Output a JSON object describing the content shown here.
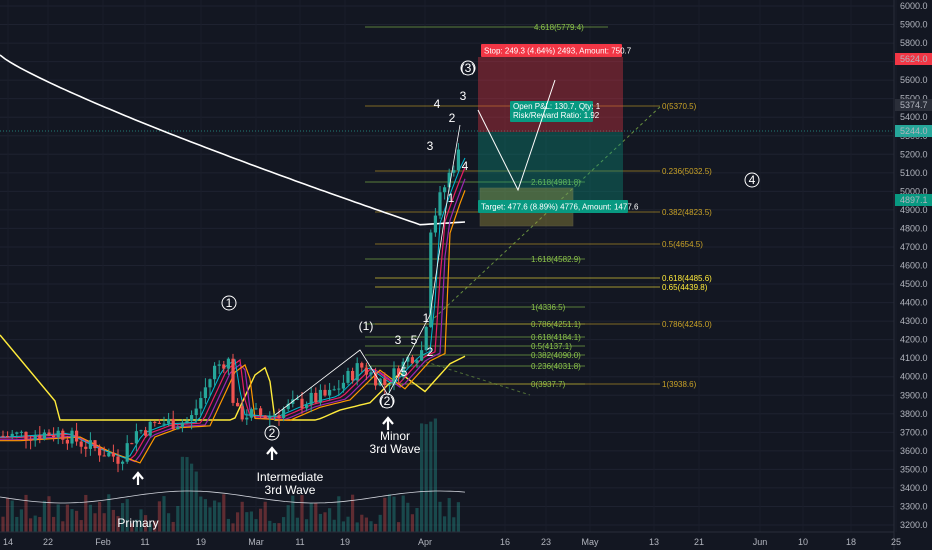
{
  "chart_data": {
    "type": "candlestick",
    "symbol_axis": "price",
    "ylim": [
      3200,
      6000
    ],
    "y_ticks": [
      "3200.0",
      "3300.0",
      "3400.0",
      "3500.0",
      "3600.0",
      "3700.0",
      "3800.0",
      "3900.0",
      "4000.0",
      "4100.0",
      "4200.0",
      "4300.0",
      "4400.0",
      "4500.0",
      "4600.0",
      "4700.0",
      "4800.0",
      "4900.0",
      "5000.0",
      "5100.0",
      "5200.0",
      "5300.0",
      "5400.0",
      "5500.0",
      "5600.0",
      "5700.0",
      "5800.0",
      "5900.0",
      "6000.0"
    ],
    "x_ticks": [
      "14",
      "22",
      "Feb",
      "11",
      "19",
      "Mar",
      "11",
      "19",
      "Apr",
      "16",
      "23",
      "May",
      "13",
      "21",
      "Jun",
      "10",
      "18",
      "25"
    ],
    "price_badges": [
      {
        "label": "5624.0",
        "color": "#f23645"
      },
      {
        "label": "5374.7",
        "color": "#2a2e39"
      },
      {
        "label": "5244.0",
        "color": "#26a69a"
      },
      {
        "label": "4897.1",
        "color": "#089981"
      }
    ],
    "fib_labels": [
      {
        "label": "4.618(5779.4)",
        "color": "#8bc34a"
      },
      {
        "label": "0(5370.5)",
        "color": "#c9a227"
      },
      {
        "label": "0.236(5032.5)",
        "color": "#c9a227"
      },
      {
        "label": "2.618(4981.8)",
        "color": "#8bc34a"
      },
      {
        "label": "0.382(4823.5)",
        "color": "#c9a227"
      },
      {
        "label": "0.5(4654.5)",
        "color": "#c9a227"
      },
      {
        "label": "1.618(4582.9)",
        "color": "#8bc34a"
      },
      {
        "label": "0.618(4485.6)",
        "color": "#ffeb3b"
      },
      {
        "label": "0.65(4439.8)",
        "color": "#ffeb3b"
      },
      {
        "label": "1(4336.5)",
        "color": "#8bc34a"
      },
      {
        "label": "0.786(4251.1)",
        "color": "#8bc34a"
      },
      {
        "label": "0.786(4245.0)",
        "color": "#c9a227"
      },
      {
        "label": "0.618(4184.1)",
        "color": "#8bc34a"
      },
      {
        "label": "0.5(4137.1)",
        "color": "#8bc34a"
      },
      {
        "label": "0.382(4090.0)",
        "color": "#8bc34a"
      },
      {
        "label": "0.236(4031.8)",
        "color": "#8bc34a"
      },
      {
        "label": "0(3937.7)",
        "color": "#8bc34a"
      },
      {
        "label": "1(3938.6)",
        "color": "#c9a227"
      }
    ],
    "position_boxes": {
      "stop": "Stop: 249.3 (4.64%) 2493, Amount: 750.7",
      "pnl": "Open P&L: 130.7, Qty: 1",
      "rr": "Risk/Reward Ratio: 1.92",
      "target": "Target: 477.6 (8.89%) 4776, Amount: 1477.6"
    },
    "wave_labels": [
      "1",
      "2",
      "(1)",
      "(2)",
      "3",
      "5",
      "1",
      "2",
      "3",
      "4",
      "2",
      "1",
      "3",
      "4",
      "5",
      "(3)",
      "4"
    ],
    "annotations": [
      {
        "lines": [
          "Primary"
        ]
      },
      {
        "lines": [
          "Intermediate",
          "3rd Wave"
        ]
      },
      {
        "lines": [
          "Minor",
          "3rd Wave"
        ]
      }
    ],
    "colors": {
      "up": "#26a69a",
      "down": "#ef5350",
      "background": "#131722",
      "ma_long": "#ffffff",
      "ma_mid": "#ffeb3b",
      "ma_fast1": "#e91e63",
      "ma_fast2": "#9c27b0",
      "ma_fast3": "#ff9800",
      "ma_fast4": "#00bcd4"
    }
  }
}
